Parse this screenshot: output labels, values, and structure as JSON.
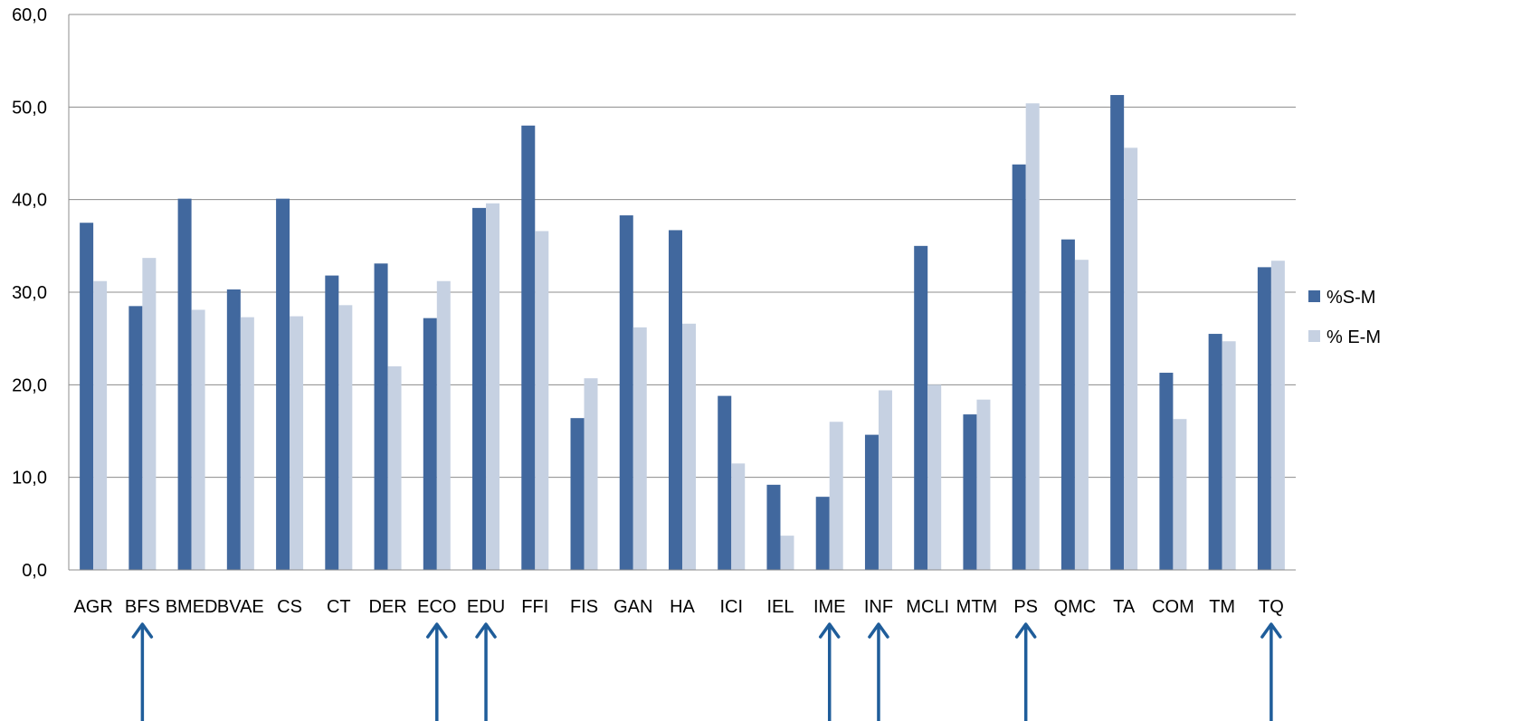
{
  "chart_data": {
    "type": "bar",
    "title": "",
    "xlabel": "",
    "ylabel": "",
    "ylim": [
      0,
      60
    ],
    "yticks": [
      "0,0",
      "10,0",
      "20,0",
      "30,0",
      "40,0",
      "50,0",
      "60,0"
    ],
    "grid": true,
    "legend_position": "right",
    "categories": [
      "AGR",
      "BFS",
      "BMED",
      "BVAE",
      "CS",
      "CT",
      "DER",
      "ECO",
      "EDU",
      "FFI",
      "FIS",
      "GAN",
      "HA",
      "ICI",
      "IEL",
      "IME",
      "INF",
      "MCLI",
      "MTM",
      "PS",
      "QMC",
      "TA",
      "COM",
      "TM",
      "TQ"
    ],
    "series": [
      {
        "name": "%S-M",
        "color": "#41689e",
        "values": [
          37.5,
          28.5,
          40.1,
          30.3,
          40.1,
          31.8,
          33.1,
          27.2,
          39.1,
          48.0,
          16.4,
          38.3,
          36.7,
          18.8,
          9.2,
          7.9,
          14.6,
          35.0,
          16.8,
          43.8,
          35.7,
          51.3,
          21.3,
          25.5,
          32.7
        ]
      },
      {
        "name": "% E-M",
        "color": "#c6d1e2",
        "values": [
          31.2,
          33.7,
          28.1,
          27.3,
          27.4,
          28.6,
          22.0,
          31.2,
          39.6,
          36.6,
          20.7,
          26.2,
          26.6,
          11.5,
          3.7,
          16.0,
          19.4,
          20.0,
          18.4,
          50.4,
          33.5,
          45.6,
          16.3,
          24.7,
          33.4
        ]
      }
    ],
    "highlighted_categories": [
      "BFS",
      "ECO",
      "EDU",
      "IME",
      "INF",
      "PS",
      "TQ"
    ],
    "arrow_color": "#1f5d9a"
  }
}
